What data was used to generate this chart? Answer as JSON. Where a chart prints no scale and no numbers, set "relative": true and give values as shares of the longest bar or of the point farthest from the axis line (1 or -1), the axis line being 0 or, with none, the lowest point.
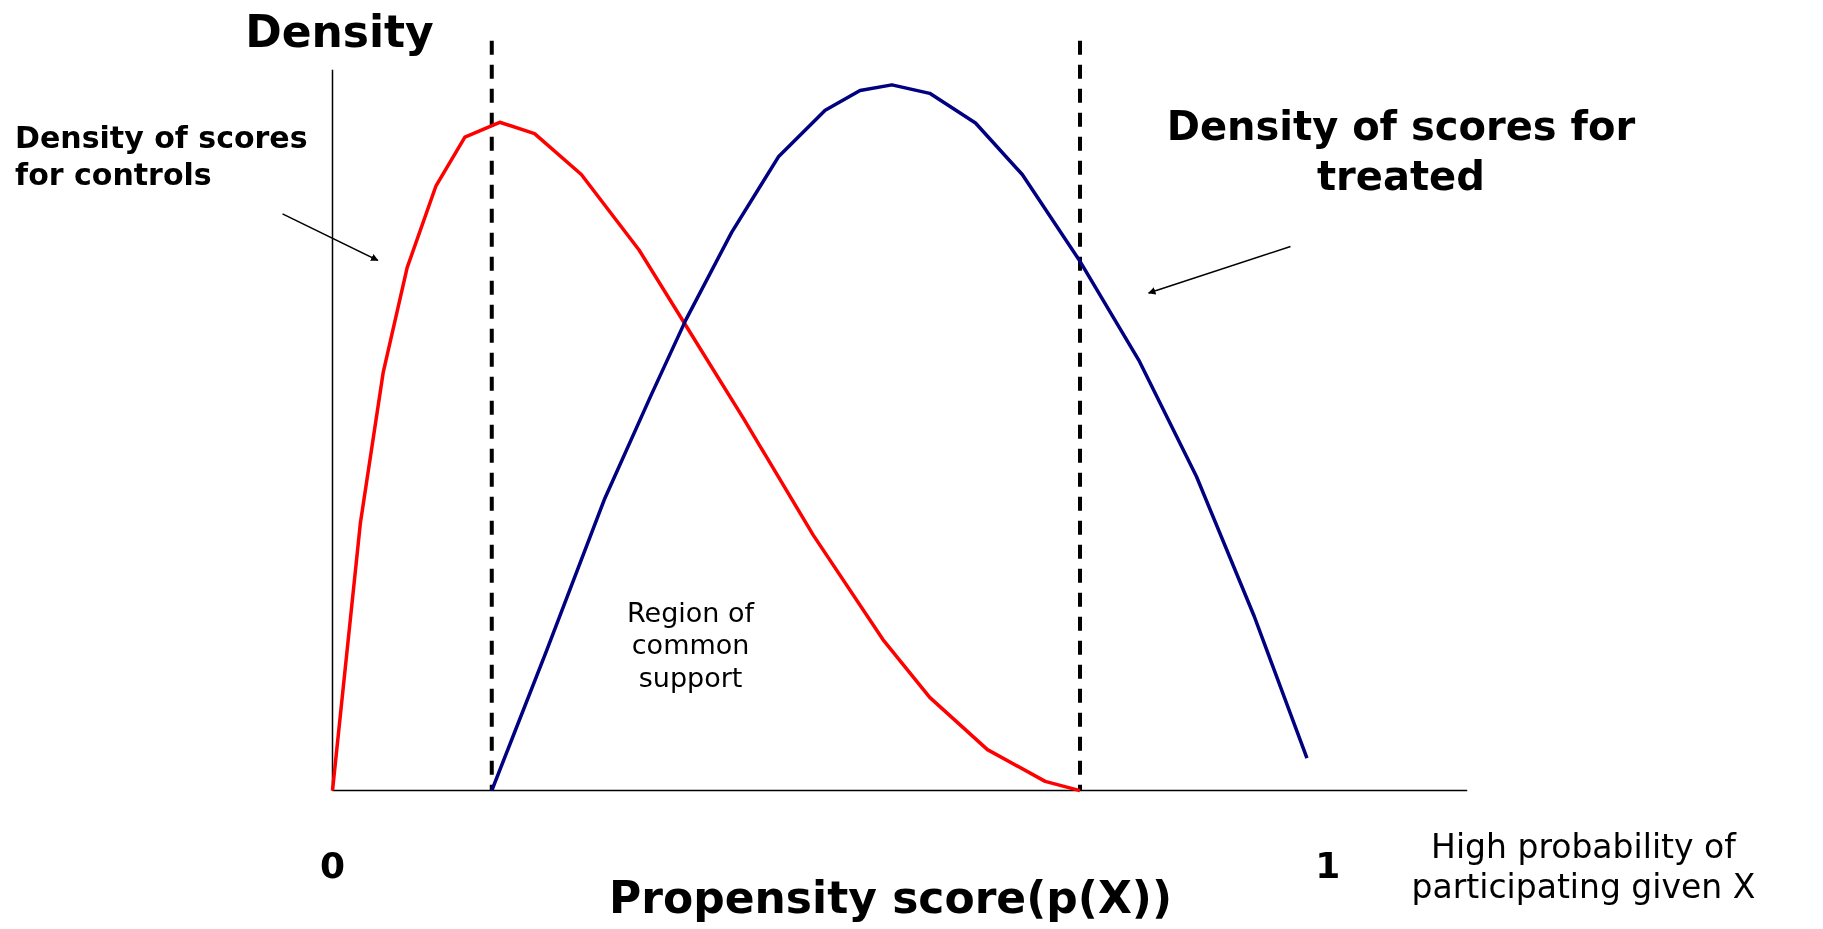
{
  "chart_data": {
    "type": "line",
    "relative": true,
    "ylabel": "Density",
    "xlabel": "Propensity score(p(X))",
    "xlim": [
      0,
      1.14
    ],
    "xticks": [
      0,
      1
    ],
    "legend": false,
    "marker": "none",
    "line_style": "solid",
    "grid": false,
    "series": [
      {
        "name": "Density of scores for controls",
        "color": "#ff0000",
        "x": [
          0,
          0.028,
          0.051,
          0.075,
          0.104,
          0.133,
          0.168,
          0.203,
          0.25,
          0.308,
          0.355,
          0.413,
          0.483,
          0.553,
          0.6,
          0.658,
          0.716,
          0.751
        ],
        "values": [
          0,
          0.379,
          0.593,
          0.741,
          0.857,
          0.926,
          0.947,
          0.931,
          0.873,
          0.766,
          0.659,
          0.527,
          0.362,
          0.214,
          0.132,
          0.058,
          0.013,
          0
        ]
      },
      {
        "name": "Density of scores for treated",
        "color": "#000080",
        "x": [
          0.16,
          0.215,
          0.273,
          0.32,
          0.355,
          0.401,
          0.448,
          0.495,
          0.53,
          0.562,
          0.6,
          0.646,
          0.693,
          0.751,
          0.81,
          0.868,
          0.926,
          0.979
        ],
        "values": [
          0,
          0.198,
          0.412,
          0.56,
          0.667,
          0.791,
          0.898,
          0.964,
          0.992,
          1,
          0.988,
          0.946,
          0.873,
          0.75,
          0.61,
          0.445,
          0.247,
          0.046
        ]
      }
    ],
    "ref_lines": [
      {
        "axis": "x",
        "value": 0.16,
        "color": "#000000",
        "line_style": "dashed"
      },
      {
        "axis": "x",
        "value": 0.751,
        "color": "#000000",
        "line_style": "dashed"
      }
    ],
    "annotations": [
      "Region of common support",
      "High probability of participating given X"
    ]
  }
}
